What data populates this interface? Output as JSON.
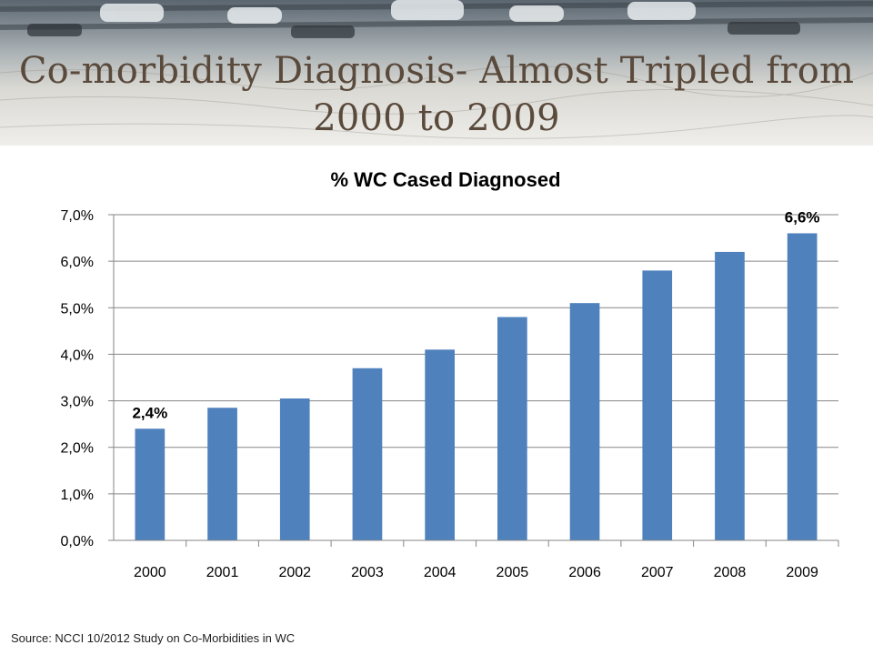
{
  "slide": {
    "title": "Co-morbidity Diagnosis- Almost Tripled from 2000 to 2009",
    "source": "Source:  NCCI 10/2012 Study on Co-Morbidities in WC"
  },
  "colors": {
    "bar": "#4f81bd",
    "title": "#5a4a3c",
    "grid": "#868686"
  },
  "chart_data": {
    "type": "bar",
    "title": "% WC Cased Diagnosed",
    "categories": [
      "2000",
      "2001",
      "2002",
      "2003",
      "2004",
      "2005",
      "2006",
      "2007",
      "2008",
      "2009"
    ],
    "values": [
      2.4,
      2.85,
      3.05,
      3.7,
      4.1,
      4.8,
      5.1,
      5.8,
      6.2,
      6.6
    ],
    "ylim": [
      0,
      7
    ],
    "yticks": [
      "0,0%",
      "1,0%",
      "2,0%",
      "3,0%",
      "4,0%",
      "5,0%",
      "6,0%",
      "7,0%"
    ],
    "data_labels": [
      {
        "category": "2000",
        "text": "2,4%"
      },
      {
        "category": "2009",
        "text": "6,6%"
      }
    ],
    "grid": true,
    "legend": "none"
  }
}
